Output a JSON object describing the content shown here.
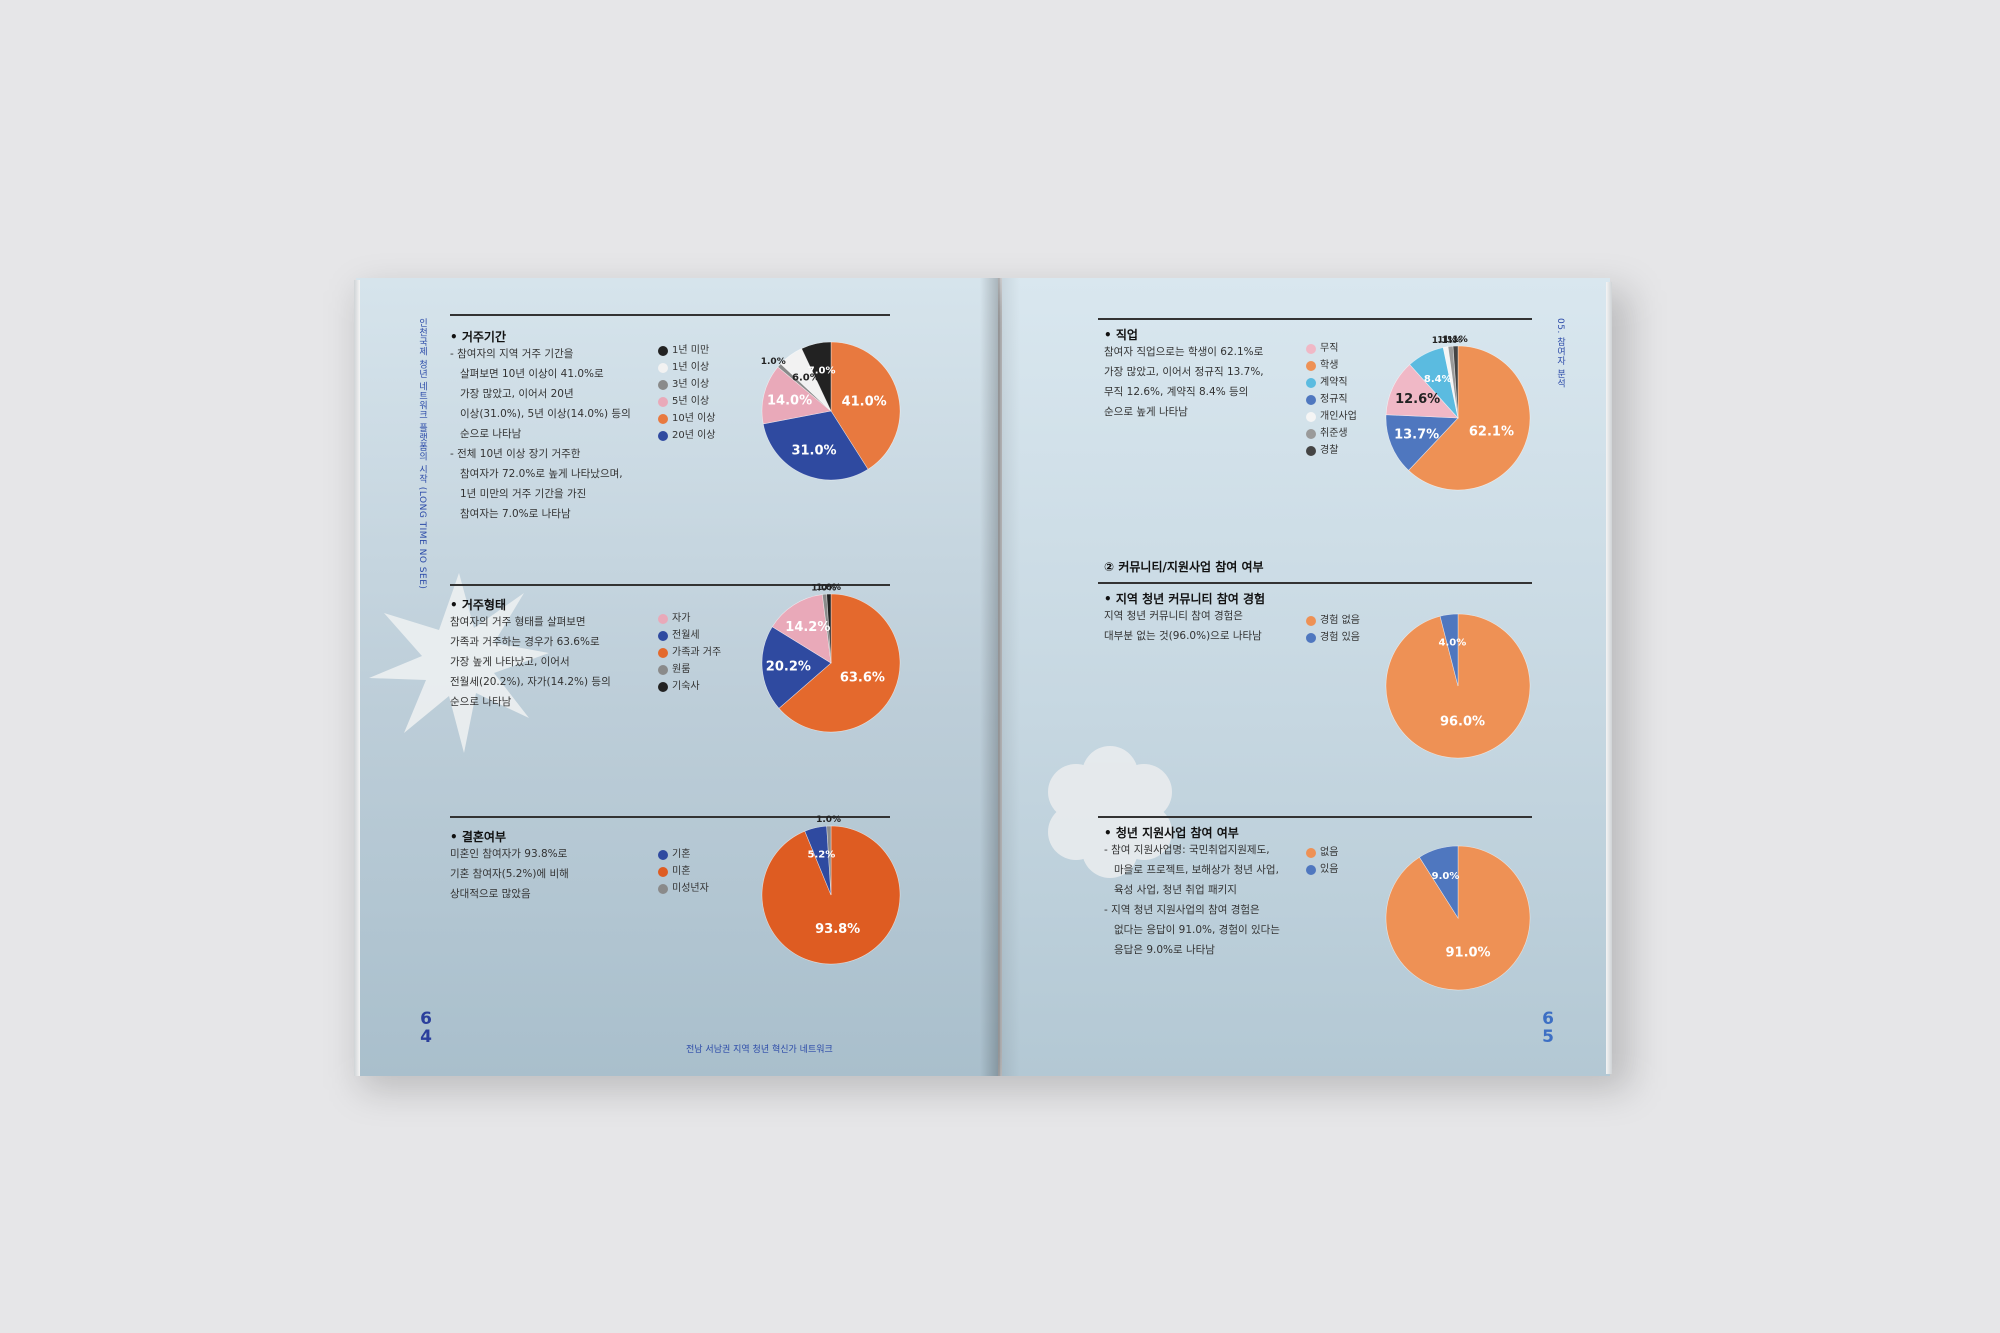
{
  "left_page": {
    "side_text": "인천국제 청년 네트워크 플랫폼의 시작 (LONG TIME NO SEE)",
    "page_number_top": "6",
    "page_number_bottom": "4",
    "footer": "전남 서남권 지역 청년 혁신가 네트워크",
    "sections": {
      "residence_period": {
        "title": "• 거주기간",
        "lines": [
          "- 참여자의 지역 거주 기간을",
          "  살펴보면 10년 이상이 41.0%로",
          "  가장 많았고, 이어서 20년",
          "  이상(31.0%), 5년 이상(14.0%) 등의",
          "  순으로 나타남",
          "- 전체 10년 이상 장기 거주한",
          "  참여자가 72.0%로 높게 나타났으며,",
          "  1년 미만의 거주 기간을 가진",
          "  참여자는 7.0%로 나타남"
        ],
        "legend": [
          "1년 미만",
          "1년 이상",
          "3년 이상",
          "5년 이상",
          "10년 이상",
          "20년 이상"
        ]
      },
      "residence_type": {
        "title": "• 거주형태",
        "lines": [
          "참여자의 거주 형태를 살펴보면",
          "가족과 거주하는 경우가 63.6%로",
          "가장 높게 나타났고, 이어서",
          "전월세(20.2%), 자가(14.2%) 등의",
          "순으로 나타남"
        ],
        "legend": [
          "자가",
          "전월세",
          "가족과 거주",
          "원룸",
          "기숙사"
        ]
      },
      "marriage": {
        "title": "• 결혼여부",
        "lines": [
          "미혼인 참여자가 93.8%로",
          "기혼 참여자(5.2%)에 비해",
          "상대적으로 많았음"
        ],
        "legend": [
          "기혼",
          "미혼",
          "미성년자"
        ]
      }
    }
  },
  "right_page": {
    "side_text": "05. 참여자 분석",
    "page_number_top": "6",
    "page_number_bottom": "5",
    "sections": {
      "occupation": {
        "title": "• 직업",
        "lines": [
          "참여자 직업으로는 학생이 62.1%로",
          "가장 많았고, 이어서 정규직 13.7%,",
          "무직 12.6%, 계약직 8.4% 등의",
          "순으로 높게 나타남"
        ],
        "legend": [
          "무직",
          "학생",
          "계약직",
          "정규직",
          "개인사업",
          "취준생",
          "경찰"
        ]
      },
      "community_heading": "② 커뮤니티/지원사업 참여 여부",
      "community": {
        "title": "• 지역 청년 커뮤니티 참여 경험",
        "lines": [
          "지역 청년 커뮤니티 참여 경험은",
          "대부분 없는 것(96.0%)으로 나타남"
        ],
        "legend": [
          "경험 없음",
          "경험 있음"
        ]
      },
      "support": {
        "title": "• 청년 지원사업 참여 여부",
        "lines": [
          "- 참여 지원사업명: 국민취업지원제도,",
          "  마을로 프로젝트, 보해상가 청년 사업,",
          "  육성 사업, 청년 취업 패키지",
          "- 지역 청년 지원사업의 참여 경험은",
          "  없다는 응답이 91.0%, 경험이 있다는",
          "  응답은 9.0%로 나타남"
        ],
        "legend": [
          "없음",
          "있음"
        ]
      }
    }
  },
  "chart_data": [
    {
      "id": "residence_period",
      "type": "pie",
      "categories": [
        "10년 이상",
        "20년 이상",
        "5년 이상",
        "3년 이상",
        "1년 이상",
        "1년 미만"
      ],
      "values": [
        41.0,
        31.0,
        14.0,
        1.0,
        6.0,
        7.0
      ],
      "labels": [
        "41.0%",
        "31.0%",
        "14.0%",
        "1.0%",
        "6.0%",
        "7.0%"
      ],
      "colors": [
        "#e8793f",
        "#2f4aa0",
        "#e9a9b9",
        "#8a8a8a",
        "#f2f2f2",
        "#222222"
      ]
    },
    {
      "id": "residence_type",
      "type": "pie",
      "categories": [
        "가족과 거주",
        "전월세",
        "자가",
        "원룸",
        "기숙사"
      ],
      "values": [
        63.6,
        20.2,
        14.2,
        1.0,
        1.0
      ],
      "labels": [
        "63.6%",
        "20.2%",
        "14.2%",
        "1.0%",
        "1.0%"
      ],
      "colors": [
        "#e4692d",
        "#2f4aa0",
        "#e9a9b9",
        "#8a8a8a",
        "#222222"
      ]
    },
    {
      "id": "marriage",
      "type": "pie",
      "categories": [
        "미혼",
        "기혼",
        "미성년자"
      ],
      "values": [
        93.8,
        5.2,
        1.0
      ],
      "labels": [
        "93.8%",
        "5.2%",
        "1.0%"
      ],
      "colors": [
        "#de5c22",
        "#2f4aa0",
        "#8a8a8a"
      ]
    },
    {
      "id": "occupation",
      "type": "pie",
      "categories": [
        "학생",
        "정규직",
        "무직",
        "계약직",
        "개인사업",
        "취준생",
        "경찰"
      ],
      "values": [
        62.1,
        13.7,
        12.6,
        8.4,
        1.1,
        1.1,
        1.1
      ],
      "labels": [
        "62.1%",
        "13.7%",
        "12.6%",
        "8.4%",
        "1.1%",
        "1.1%",
        "1.1%"
      ],
      "colors": [
        "#ee9155",
        "#4f77bf",
        "#f0b8c6",
        "#5bbbe0",
        "#f5f5f5",
        "#9a9a9a",
        "#444444"
      ]
    },
    {
      "id": "community",
      "type": "pie",
      "categories": [
        "경험 없음",
        "경험 있음"
      ],
      "values": [
        96.0,
        4.0
      ],
      "labels": [
        "96.0%",
        "4.0%"
      ],
      "colors": [
        "#ee9155",
        "#4f77bf"
      ]
    },
    {
      "id": "support",
      "type": "pie",
      "categories": [
        "없음",
        "있음"
      ],
      "values": [
        91.0,
        9.0
      ],
      "labels": [
        "91.0%",
        "9.0%"
      ],
      "colors": [
        "#ee9155",
        "#4f77bf"
      ]
    }
  ]
}
